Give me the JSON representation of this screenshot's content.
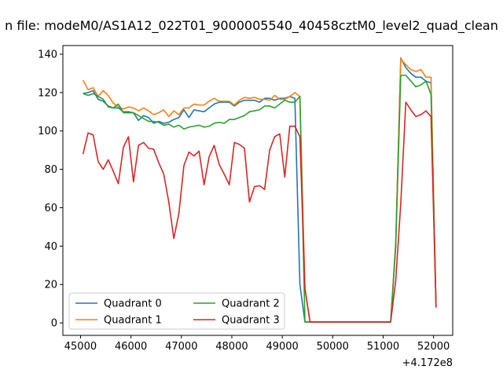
{
  "chart_data": {
    "type": "line",
    "title": "n file: modeM0/AS1A12_022T01_9000005540_40458cztM0_level2_quad_clean",
    "xlabel": "",
    "ylabel": "",
    "x_offset_label": "+4.172e8",
    "xlim": [
      44650,
      52380
    ],
    "ylim": [
      -6.5,
      144.5
    ],
    "x_ticks": [
      45000,
      46000,
      47000,
      48000,
      49000,
      50000,
      51000,
      52000
    ],
    "y_ticks": [
      0,
      20,
      40,
      60,
      80,
      100,
      120,
      140
    ],
    "grid": false,
    "legend_position": "lower-left",
    "legend_columns": 2,
    "series": [
      {
        "name": "Quadrant 0",
        "color": "#1f77b4",
        "x": [
          45050,
          45150,
          45250,
          45350,
          45450,
          45550,
          45650,
          45750,
          45850,
          45950,
          46050,
          46150,
          46250,
          46350,
          46450,
          46550,
          46650,
          46750,
          46850,
          46950,
          47050,
          47150,
          47250,
          47350,
          47450,
          47550,
          47650,
          47750,
          47850,
          47950,
          48050,
          48150,
          48250,
          48350,
          48450,
          48550,
          48650,
          48750,
          48850,
          48950,
          49050,
          49150,
          49250,
          49350,
          49450,
          49550,
          49650,
          51150,
          51250,
          51350,
          51450,
          51550,
          51650,
          51750,
          51850,
          51950,
          52050
        ],
        "y": [
          119.5,
          120,
          121,
          116.5,
          115.5,
          113,
          112,
          112,
          110,
          110,
          109.5,
          105.5,
          108,
          107,
          104,
          105,
          104,
          104.5,
          106,
          107,
          111,
          107,
          111,
          110.5,
          110,
          112,
          114,
          115,
          115,
          115,
          113,
          115,
          116,
          116,
          116,
          115,
          117,
          117,
          116,
          117,
          117,
          118,
          117,
          20,
          0.5,
          0.5,
          0.5,
          0.5,
          40,
          138,
          133,
          130,
          128,
          128,
          126,
          125,
          8
        ]
      },
      {
        "name": "Quadrant 1",
        "color": "#ff7f0e",
        "x": [
          45050,
          45150,
          45250,
          45350,
          45450,
          45550,
          45650,
          45750,
          45850,
          45950,
          46050,
          46150,
          46250,
          46350,
          46450,
          46550,
          46650,
          46750,
          46850,
          46950,
          47050,
          47150,
          47250,
          47350,
          47450,
          47550,
          47650,
          47750,
          47850,
          47950,
          48050,
          48150,
          48250,
          48350,
          48450,
          48550,
          48650,
          48750,
          48850,
          48950,
          49050,
          49150,
          49250,
          49350,
          49450,
          49550,
          49650,
          51150,
          51250,
          51350,
          51450,
          51550,
          51650,
          51750,
          51850,
          51950,
          52050
        ],
        "y": [
          126.5,
          121.5,
          122.5,
          118,
          121,
          118.5,
          114.5,
          112.5,
          111.5,
          112.5,
          112,
          110.5,
          112,
          110.5,
          108.5,
          109.5,
          111,
          107.5,
          110.5,
          108.5,
          112,
          112,
          114,
          113.5,
          113.5,
          115.5,
          117,
          115.5,
          115.5,
          115.5,
          113.5,
          116,
          117.5,
          117,
          117.5,
          116.5,
          116.5,
          116,
          118.5,
          116.5,
          116.5,
          118,
          120,
          118,
          18,
          0.5,
          0.5,
          0.5,
          42,
          137.5,
          134.5,
          132,
          131,
          132,
          128,
          128,
          8
        ]
      },
      {
        "name": "Quadrant 2",
        "color": "#2ca02c",
        "x": [
          45050,
          45150,
          45250,
          45350,
          45450,
          45550,
          45650,
          45750,
          45850,
          45950,
          46050,
          46150,
          46250,
          46350,
          46450,
          46550,
          46650,
          46750,
          46850,
          46950,
          47050,
          47150,
          47250,
          47350,
          47450,
          47550,
          47650,
          47750,
          47850,
          47950,
          48050,
          48150,
          48250,
          48350,
          48450,
          48550,
          48650,
          48750,
          48850,
          48950,
          49050,
          49150,
          49250,
          49350,
          49450,
          49550,
          49650,
          51150,
          51250,
          51350,
          51450,
          51550,
          51650,
          51750,
          51850,
          51950,
          52050
        ],
        "y": [
          119.5,
          118.5,
          119.5,
          118,
          116.5,
          112.5,
          112,
          114,
          109.5,
          109.5,
          109.5,
          108,
          106.5,
          105,
          105,
          104.5,
          103,
          103.5,
          102,
          103,
          101,
          102,
          102.5,
          103,
          102,
          102.5,
          104,
          104.5,
          104,
          106,
          106,
          107,
          108,
          110,
          110.5,
          111,
          113,
          113,
          112,
          114,
          116,
          115,
          115,
          118,
          0.5,
          0.5,
          0.5,
          0.5,
          40,
          129,
          129,
          126,
          123,
          124,
          126,
          119,
          8
        ]
      },
      {
        "name": "Quadrant 3",
        "color": "#d62728",
        "x": [
          45050,
          45150,
          45250,
          45350,
          45450,
          45550,
          45650,
          45750,
          45850,
          45950,
          46050,
          46150,
          46250,
          46350,
          46450,
          46550,
          46650,
          46750,
          46850,
          46950,
          47050,
          47150,
          47250,
          47350,
          47450,
          47550,
          47650,
          47750,
          47850,
          47950,
          48050,
          48150,
          48250,
          48350,
          48450,
          48550,
          48650,
          48750,
          48850,
          48950,
          49050,
          49150,
          49250,
          49350,
          49450,
          49550,
          49650,
          51150,
          51250,
          51350,
          51450,
          51550,
          51650,
          51750,
          51850,
          51950,
          52050
        ],
        "y": [
          88,
          99,
          98,
          84,
          80,
          85,
          79,
          72.5,
          91.5,
          97,
          73.5,
          92.5,
          94,
          91,
          90.5,
          83.5,
          77.5,
          63,
          44,
          57,
          82,
          89,
          87,
          89.5,
          72,
          86.5,
          92.5,
          82.5,
          77.5,
          72,
          94,
          93,
          91,
          63,
          71,
          71.5,
          69.5,
          90,
          97,
          98.5,
          76,
          102.5,
          102.5,
          97,
          18,
          0.5,
          0.5,
          0.5,
          22,
          62,
          115,
          111,
          107.5,
          108.5,
          110.5,
          107.5,
          8
        ]
      }
    ]
  }
}
